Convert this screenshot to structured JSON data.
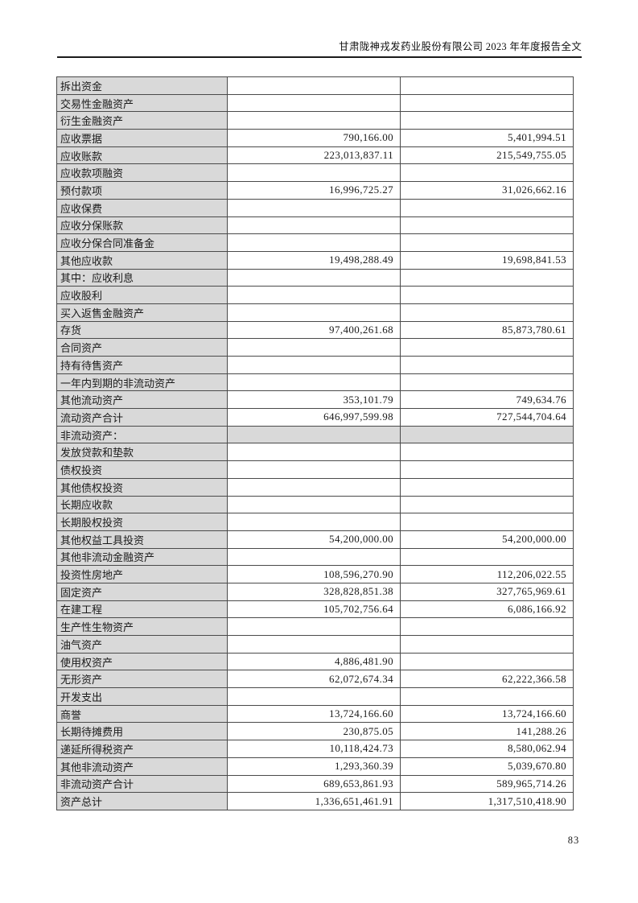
{
  "header": {
    "title": "甘肃陇神戎发药业股份有限公司 2023 年年度报告全文"
  },
  "footer": {
    "page_number": "83"
  },
  "colors": {
    "cell_gray": "#d9d9d9",
    "table_border": "#4a4a4a",
    "header_rule": "#1b1b1b"
  },
  "table": {
    "rows": [
      {
        "label": "拆出资金",
        "indent": 1,
        "current": "",
        "prior": "",
        "section_row": false
      },
      {
        "label": "交易性金融资产",
        "indent": 1,
        "current": "",
        "prior": "",
        "section_row": false
      },
      {
        "label": "衍生金融资产",
        "indent": 1,
        "current": "",
        "prior": "",
        "section_row": false
      },
      {
        "label": "应收票据",
        "indent": 1,
        "current": "790,166.00",
        "prior": "5,401,994.51",
        "section_row": false
      },
      {
        "label": "应收账款",
        "indent": 1,
        "current": "223,013,837.11",
        "prior": "215,549,755.05",
        "section_row": false
      },
      {
        "label": "应收款项融资",
        "indent": 1,
        "current": "",
        "prior": "",
        "section_row": false
      },
      {
        "label": "预付款项",
        "indent": 1,
        "current": "16,996,725.27",
        "prior": "31,026,662.16",
        "section_row": false
      },
      {
        "label": "应收保费",
        "indent": 1,
        "current": "",
        "prior": "",
        "section_row": false
      },
      {
        "label": "应收分保账款",
        "indent": 1,
        "current": "",
        "prior": "",
        "section_row": false
      },
      {
        "label": "应收分保合同准备金",
        "indent": 1,
        "current": "",
        "prior": "",
        "section_row": false
      },
      {
        "label": "其他应收款",
        "indent": 1,
        "current": "19,498,288.49",
        "prior": "19,698,841.53",
        "section_row": false
      },
      {
        "label": "其中：应收利息",
        "indent": 2,
        "current": "",
        "prior": "",
        "section_row": false
      },
      {
        "label": "应收股利",
        "indent": 3,
        "current": "",
        "prior": "",
        "section_row": false
      },
      {
        "label": "买入返售金融资产",
        "indent": 1,
        "current": "",
        "prior": "",
        "section_row": false
      },
      {
        "label": "存货",
        "indent": 1,
        "current": "97,400,261.68",
        "prior": "85,873,780.61",
        "section_row": false
      },
      {
        "label": "合同资产",
        "indent": 1,
        "current": "",
        "prior": "",
        "section_row": false
      },
      {
        "label": "持有待售资产",
        "indent": 1,
        "current": "",
        "prior": "",
        "section_row": false
      },
      {
        "label": "一年内到期的非流动资产",
        "indent": 1,
        "current": "",
        "prior": "",
        "section_row": false
      },
      {
        "label": "其他流动资产",
        "indent": 1,
        "current": "353,101.79",
        "prior": "749,634.76",
        "section_row": false
      },
      {
        "label": "流动资产合计",
        "indent": 0,
        "current": "646,997,599.98",
        "prior": "727,544,704.64",
        "section_row": false
      },
      {
        "label": "非流动资产：",
        "indent": 0,
        "current": "",
        "prior": "",
        "section_row": true
      },
      {
        "label": "发放贷款和垫款",
        "indent": 1,
        "current": "",
        "prior": "",
        "section_row": false
      },
      {
        "label": "债权投资",
        "indent": 1,
        "current": "",
        "prior": "",
        "section_row": false
      },
      {
        "label": "其他债权投资",
        "indent": 1,
        "current": "",
        "prior": "",
        "section_row": false
      },
      {
        "label": "长期应收款",
        "indent": 1,
        "current": "",
        "prior": "",
        "section_row": false
      },
      {
        "label": "长期股权投资",
        "indent": 1,
        "current": "",
        "prior": "",
        "section_row": false
      },
      {
        "label": "其他权益工具投资",
        "indent": 1,
        "current": "54,200,000.00",
        "prior": "54,200,000.00",
        "section_row": false
      },
      {
        "label": "其他非流动金融资产",
        "indent": 1,
        "current": "",
        "prior": "",
        "section_row": false
      },
      {
        "label": "投资性房地产",
        "indent": 1,
        "current": "108,596,270.90",
        "prior": "112,206,022.55",
        "section_row": false
      },
      {
        "label": "固定资产",
        "indent": 1,
        "current": "328,828,851.38",
        "prior": "327,765,969.61",
        "section_row": false
      },
      {
        "label": "在建工程",
        "indent": 1,
        "current": "105,702,756.64",
        "prior": "6,086,166.92",
        "section_row": false
      },
      {
        "label": "生产性生物资产",
        "indent": 1,
        "current": "",
        "prior": "",
        "section_row": false
      },
      {
        "label": "油气资产",
        "indent": 1,
        "current": "",
        "prior": "",
        "section_row": false
      },
      {
        "label": "使用权资产",
        "indent": 1,
        "current": "4,886,481.90",
        "prior": "",
        "section_row": false
      },
      {
        "label": "无形资产",
        "indent": 1,
        "current": "62,072,674.34",
        "prior": "62,222,366.58",
        "section_row": false
      },
      {
        "label": "开发支出",
        "indent": 1,
        "current": "",
        "prior": "",
        "section_row": false
      },
      {
        "label": "商誉",
        "indent": 1,
        "current": "13,724,166.60",
        "prior": "13,724,166.60",
        "section_row": false
      },
      {
        "label": "长期待摊费用",
        "indent": 1,
        "current": "230,875.05",
        "prior": "141,288.26",
        "section_row": false
      },
      {
        "label": "递延所得税资产",
        "indent": 1,
        "current": "10,118,424.73",
        "prior": "8,580,062.94",
        "section_row": false
      },
      {
        "label": "其他非流动资产",
        "indent": 1,
        "current": "1,293,360.39",
        "prior": "5,039,670.80",
        "section_row": false
      },
      {
        "label": "非流动资产合计",
        "indent": 0,
        "current": "689,653,861.93",
        "prior": "589,965,714.26",
        "section_row": false
      },
      {
        "label": "资产总计",
        "indent": 0,
        "current": "1,336,651,461.91",
        "prior": "1,317,510,418.90",
        "section_row": false
      }
    ]
  }
}
